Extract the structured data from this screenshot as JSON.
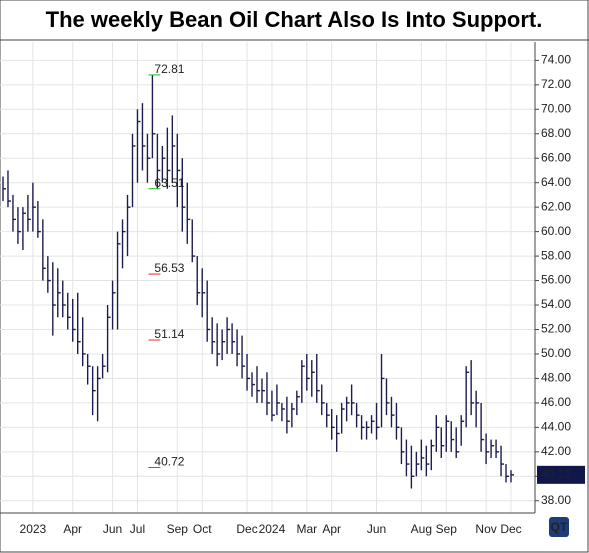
{
  "chart_data": {
    "type": "hlc",
    "title": "The weekly Bean Oil Chart Also Is Into Support.",
    "categories": [
      null,
      null,
      null,
      null,
      null,
      null,
      "2023",
      null,
      null,
      null,
      null,
      null,
      null,
      null,
      "Apr",
      null,
      null,
      null,
      null,
      null,
      null,
      null,
      "Jun",
      null,
      null,
      null,
      null,
      "Jul",
      null,
      null,
      null,
      null,
      null,
      null,
      null,
      "Sep",
      null,
      null,
      null,
      null,
      "Oct",
      null,
      null,
      null,
      null,
      null,
      null,
      null,
      null,
      "Dec",
      null,
      null,
      null,
      null,
      "2024",
      null,
      null,
      null,
      null,
      null,
      null,
      "Mar",
      null,
      null,
      null,
      null,
      "Apr",
      null,
      null,
      null,
      null,
      null,
      null,
      null,
      null,
      "Jun",
      null,
      null,
      null,
      null,
      null,
      null,
      null,
      null,
      "Aug",
      null,
      null,
      null,
      null,
      "Sep",
      null,
      null,
      null,
      null,
      null,
      null,
      null,
      "Nov",
      null,
      null,
      null,
      null,
      "Dec"
    ],
    "high": [
      64.5,
      65,
      63,
      62,
      62,
      63,
      64,
      62.5,
      61,
      58,
      57.5,
      57,
      56,
      55,
      54.5,
      55,
      53,
      50,
      49,
      49,
      50,
      54,
      56,
      60,
      61,
      63,
      68,
      70,
      70.5,
      68,
      72.81,
      68,
      67,
      68.5,
      69.5,
      68,
      66,
      64,
      61,
      58,
      57,
      56,
      53,
      52.5,
      52,
      53,
      52.5,
      52,
      51.5,
      50,
      48.5,
      49,
      48,
      48.5,
      47,
      47.5,
      46,
      46.5,
      46,
      47,
      49.5,
      50,
      49.5,
      50,
      47.5,
      46,
      45.5,
      45,
      46,
      46.5,
      47.5,
      46,
      45,
      44.5,
      45,
      46,
      50,
      48,
      46.5,
      46,
      44,
      43,
      42.5,
      42,
      43,
      42.5,
      43,
      45,
      44,
      45,
      44.5,
      44,
      45,
      49,
      49.5,
      47,
      46,
      43.5,
      43,
      43,
      42.5,
      41,
      40.5
    ],
    "low": [
      62.5,
      62,
      60,
      59,
      58.5,
      60,
      60,
      59.5,
      56,
      55,
      51.5,
      53,
      53,
      52,
      51,
      50,
      49,
      47.5,
      45,
      44.5,
      48,
      48.5,
      52,
      52,
      57,
      58,
      62,
      64,
      65,
      64,
      66,
      63.5,
      64,
      63.5,
      64,
      62,
      60,
      59,
      57.5,
      54,
      53,
      51,
      50,
      49,
      49.5,
      50,
      50,
      49,
      48,
      47,
      46.5,
      46,
      46,
      45,
      44.5,
      45,
      44.5,
      43.5,
      44,
      45,
      46,
      47,
      46.5,
      46,
      45,
      44,
      43,
      42,
      43.5,
      44.5,
      45,
      44,
      43,
      43,
      43.5,
      43,
      44,
      45,
      44,
      43,
      41,
      40,
      39,
      40,
      40.5,
      40,
      40.5,
      42,
      41.5,
      42,
      42,
      41.5,
      42.5,
      44,
      45,
      44,
      42,
      41,
      41.5,
      41.5,
      40,
      39.5,
      39.5
    ],
    "close": [
      63.5,
      62.5,
      61,
      60,
      61.5,
      61,
      62,
      60,
      57,
      56,
      54,
      55,
      54,
      53,
      52,
      51,
      50,
      49,
      47,
      48,
      49,
      53,
      55,
      59,
      60,
      62,
      67,
      69,
      67,
      66,
      68,
      65,
      66,
      65,
      67,
      65,
      62,
      61,
      58,
      55,
      55,
      52,
      51,
      50,
      51,
      52,
      51,
      50,
      49,
      48,
      47.5,
      47,
      47,
      46,
      45,
      46,
      45.5,
      44.5,
      45.5,
      46.5,
      49,
      48,
      48.5,
      47,
      46,
      45,
      44,
      43.5,
      45.5,
      46,
      46,
      45,
      44,
      44,
      44.5,
      44,
      48,
      46,
      45,
      44,
      42,
      41,
      40,
      41,
      41.5,
      41,
      42.5,
      44,
      42.5,
      44.5,
      43,
      42,
      44.5,
      48.5,
      46,
      46,
      43,
      42,
      42.5,
      42,
      41,
      40,
      40.12
    ],
    "color": "#1c1c4e",
    "ylim": [
      37,
      75.5
    ],
    "yticks": [
      {
        "value": 38,
        "label": "38.00"
      },
      {
        "value": 40,
        "label": "40.00"
      },
      {
        "value": 42,
        "label": "42.00"
      },
      {
        "value": 44,
        "label": "44.00"
      },
      {
        "value": 46,
        "label": "46.00"
      },
      {
        "value": 48,
        "label": "48.00"
      },
      {
        "value": 50,
        "label": "50.00"
      },
      {
        "value": 52,
        "label": "52.00"
      },
      {
        "value": 54,
        "label": "54.00"
      },
      {
        "value": 56,
        "label": "56.00"
      },
      {
        "value": 58,
        "label": "58.00"
      },
      {
        "value": 60,
        "label": "60.00"
      },
      {
        "value": 62,
        "label": "62.00"
      },
      {
        "value": 64,
        "label": "64.00"
      },
      {
        "value": 66,
        "label": "66.00"
      },
      {
        "value": 68,
        "label": "68.00"
      },
      {
        "value": 70,
        "label": "70.00"
      },
      {
        "value": 72,
        "label": "72.00"
      },
      {
        "value": 74,
        "label": "74.00"
      }
    ],
    "grid": true,
    "year_label_color": "#d01010",
    "annotations": [
      {
        "value": 72.81,
        "label": "72.81",
        "color": "#22bb22",
        "index": 30
      },
      {
        "value": 63.51,
        "label": "63.51",
        "color": "#22bb22",
        "index": 30
      },
      {
        "value": 56.53,
        "label": "56.53",
        "color": "#e03030",
        "index": 30
      },
      {
        "value": 51.14,
        "label": "51.14",
        "color": "#e03030",
        "index": 30
      },
      {
        "value": 40.72,
        "label": "40.72",
        "color": "#e03030",
        "index": 30
      }
    ],
    "last_price": {
      "value": 40.12,
      "label": "40.12"
    },
    "logo": "QT"
  }
}
